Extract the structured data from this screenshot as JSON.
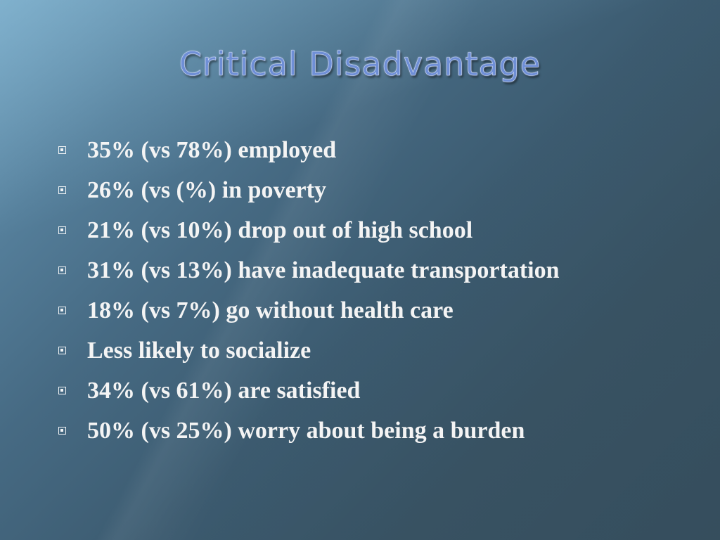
{
  "slide": {
    "title": "Critical Disadvantage",
    "bullets": [
      "35% (vs 78%) employed",
      "26% (vs (%) in poverty",
      "21% (vs 10%) drop out of high school",
      "31% (vs 13%) have inadequate transportation",
      "18% (vs 7%) go without health care",
      "Less likely to socialize",
      "34% (vs 61%) are satisfied",
      "50% (vs 25%) worry about being a burden"
    ]
  },
  "colors": {
    "title": "#6f8fd6",
    "text": "#f4f4f4",
    "background_light": "#6f9fbd",
    "background_dark": "#3a5465"
  },
  "icons": {
    "bullet": "square-bullet-icon"
  }
}
